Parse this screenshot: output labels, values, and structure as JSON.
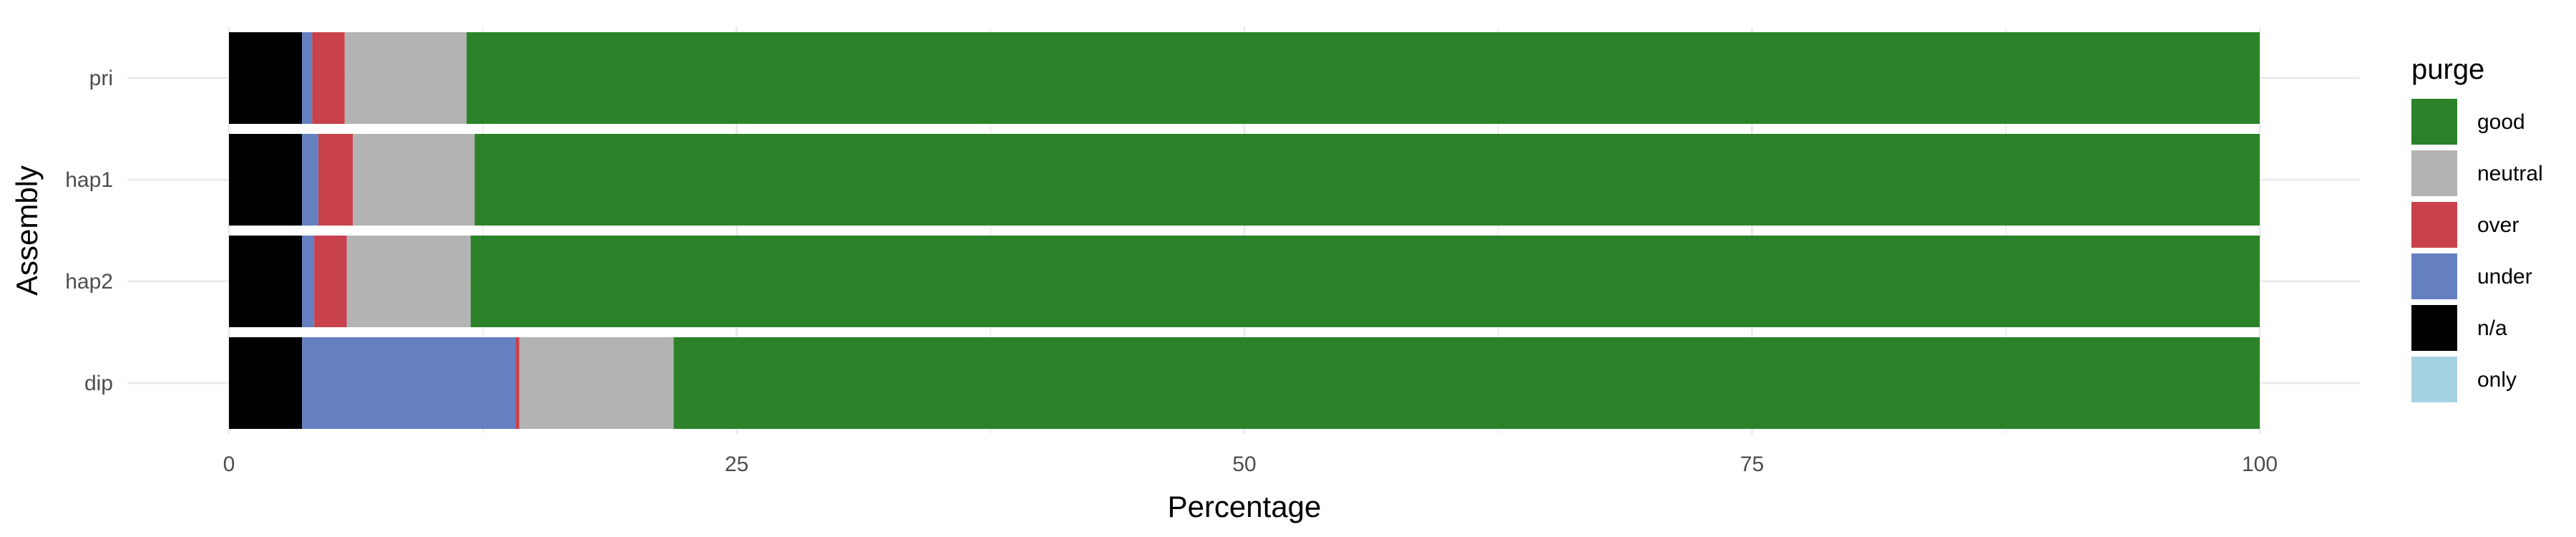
{
  "chart_data": {
    "type": "bar",
    "orientation": "horizontal",
    "stacked": true,
    "xlabel": "Percentage",
    "ylabel": "Assembly",
    "xlim": [
      0,
      100
    ],
    "x_ticks": [
      0,
      25,
      50,
      75,
      100
    ],
    "grid": true,
    "categories": [
      "pri",
      "hap1",
      "hap2",
      "dip"
    ],
    "series": [
      {
        "name": "n/a",
        "color": "#000000",
        "values": [
          3.6,
          3.6,
          3.6,
          3.6
        ]
      },
      {
        "name": "under",
        "color": "#6580C0",
        "values": [
          0.5,
          0.8,
          0.6,
          10.5
        ]
      },
      {
        "name": "over",
        "color": "#C8414B",
        "values": [
          1.6,
          1.7,
          1.6,
          0.2
        ]
      },
      {
        "name": "neutral",
        "color": "#B3B3B3",
        "values": [
          6.0,
          6.0,
          6.1,
          7.6
        ]
      },
      {
        "name": "good",
        "color": "#2B8228",
        "values": [
          88.3,
          87.9,
          88.1,
          78.1
        ]
      },
      {
        "name": "only",
        "color": "#A6D3E3",
        "values": [
          0,
          0,
          0,
          0
        ]
      }
    ],
    "legend": {
      "title": "purge",
      "position": "right",
      "order": [
        "good",
        "neutral",
        "over",
        "under",
        "n/a",
        "only"
      ]
    }
  }
}
